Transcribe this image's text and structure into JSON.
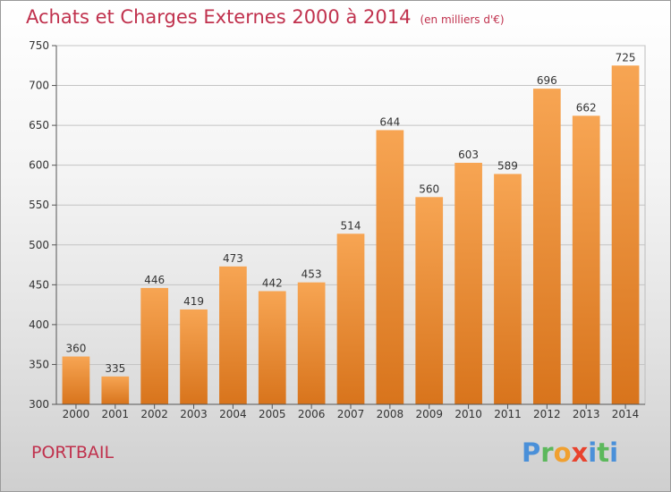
{
  "title": "Achats et Charges Externes 2000 à 2014",
  "unit": "(en milliers d'€)",
  "commune": "PORTBAIL",
  "logo": {
    "letters": [
      "P",
      "r",
      "o",
      "x",
      "i",
      "t",
      "i"
    ],
    "colors": [
      "#4a90d9",
      "#5cb85c",
      "#f0a030",
      "#e8432e",
      "#4a90d9",
      "#5cb85c",
      "#4a90d9"
    ]
  },
  "colors": {
    "title": "#c0314d",
    "bar_light": "#f7a553",
    "bar_dark": "#d8741c"
  },
  "chart_data": {
    "type": "bar",
    "title": "Achats et Charges Externes 2000 à 2014",
    "subtitle": "(en milliers d'€)",
    "xlabel": "",
    "ylabel": "",
    "categories": [
      "2000",
      "2001",
      "2002",
      "2003",
      "2004",
      "2005",
      "2006",
      "2007",
      "2008",
      "2009",
      "2010",
      "2011",
      "2012",
      "2013",
      "2014"
    ],
    "values": [
      360,
      335,
      446,
      419,
      473,
      442,
      453,
      514,
      644,
      560,
      603,
      589,
      696,
      662,
      725
    ],
    "ylim": [
      300,
      750
    ],
    "yticks": [
      300,
      350,
      400,
      450,
      500,
      550,
      600,
      650,
      700,
      750
    ],
    "grid": true,
    "legend": "none"
  }
}
